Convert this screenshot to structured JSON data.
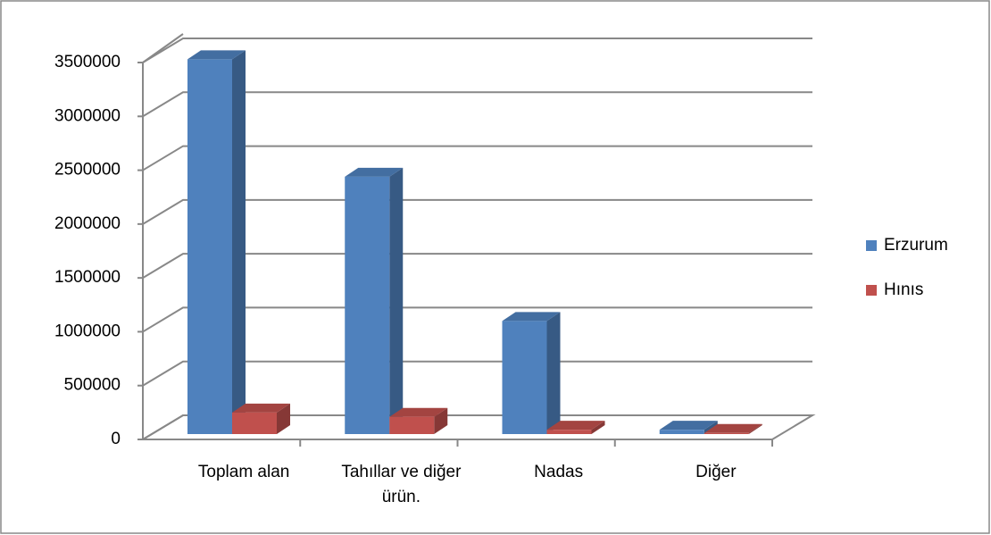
{
  "chart_data": {
    "type": "bar3d",
    "categories": [
      "Toplam alan",
      "Tahıllar ve diğer ürün.",
      "Nadas",
      "Diğer"
    ],
    "series": [
      {
        "name": "Erzurum",
        "color": "#4f81bd",
        "values": [
          3480000,
          2390000,
          1050000,
          40000
        ]
      },
      {
        "name": "Hınıs",
        "color": "#c0504d",
        "values": [
          200000,
          160000,
          40000,
          10000
        ]
      }
    ],
    "ylim": [
      0,
      3500000
    ],
    "yticks": [
      0,
      500000,
      1000000,
      1500000,
      2000000,
      2500000,
      3000000,
      3500000
    ],
    "grid": true,
    "legend": "right"
  }
}
